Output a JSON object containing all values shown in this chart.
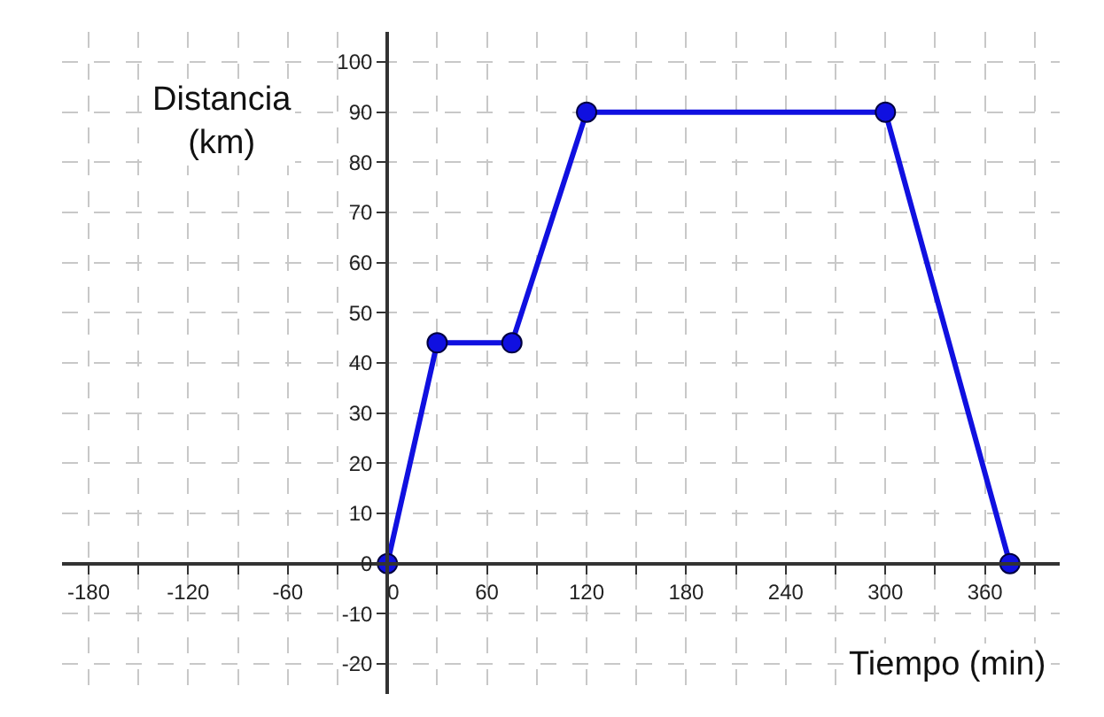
{
  "chart_data": {
    "type": "line",
    "xlabel": "Tiempo (min)",
    "ylabel": "Distancia (km)",
    "x": [
      0,
      30,
      75,
      120,
      300,
      375
    ],
    "series": [
      {
        "color": "#1010e0",
        "values": [
          0,
          44,
          44,
          90,
          90,
          0
        ]
      }
    ],
    "marker": "circle",
    "line_style": "solid",
    "grid": true,
    "xlim": [
      -196,
      405
    ],
    "ylim": [
      -26,
      106
    ],
    "xticks": [
      -180,
      {
        "value": -150,
        "label": null
      },
      -120,
      {
        "value": -90,
        "label": null
      },
      -60,
      {
        "value": -30,
        "label": null
      },
      0,
      {
        "value": 30,
        "label": null
      },
      60,
      {
        "value": 90,
        "label": null
      },
      120,
      {
        "value": 150,
        "label": null
      },
      180,
      {
        "value": 210,
        "label": null
      },
      240,
      {
        "value": 270,
        "label": null
      },
      300,
      {
        "value": 330,
        "label": null
      },
      360,
      {
        "value": 390,
        "label": null
      }
    ],
    "yticks": [
      -20,
      -10,
      0,
      10,
      20,
      30,
      40,
      50,
      60,
      70,
      80,
      90,
      100
    ]
  }
}
